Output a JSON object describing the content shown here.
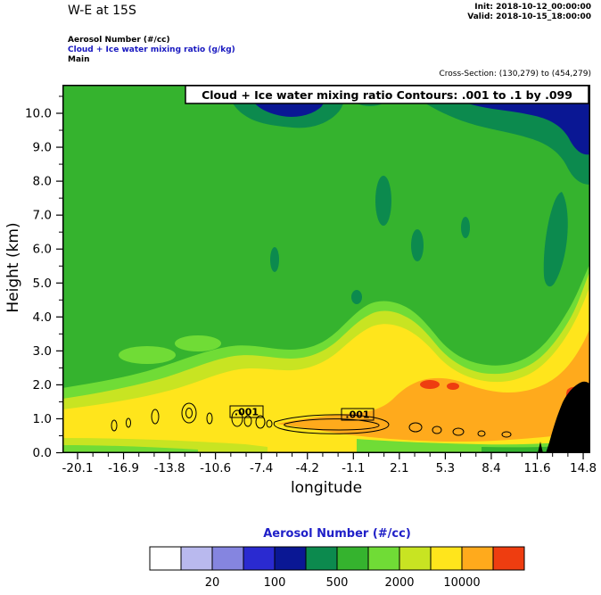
{
  "header": {
    "title": "W-E at 15S",
    "init_time": "Init: 2018-10-12_00:00:00",
    "valid_time": "Valid: 2018-10-15_18:00:00",
    "fields": {
      "fill": "Aerosol Number  (#/cc)",
      "contour": "Cloud + Ice water mixing ratio  (g/kg)",
      "model": "Main"
    },
    "cross_section": "Cross-Section: (130,279) to (454,279)"
  },
  "plot": {
    "banner": "Cloud + Ice water mixing ratio Contours: .001 to .1 by .099",
    "xlabel": "longitude",
    "ylabel": "Height (km)",
    "contour_labels": [
      ".001",
      ".001"
    ]
  },
  "axes": {
    "x": {
      "tick_labels": [
        "-20.1",
        "-16.9",
        "-13.8",
        "-10.6",
        "-7.4",
        "-4.2",
        "-1.1",
        "2.1",
        "5.3",
        "8.4",
        "11.6",
        "14.8"
      ]
    },
    "y": {
      "tick_labels": [
        "0.0",
        "1.0",
        "2.0",
        "3.0",
        "4.0",
        "5.0",
        "6.0",
        "7.0",
        "8.0",
        "9.0",
        "10.0"
      ]
    }
  },
  "colorbar": {
    "title": "Aerosol Number  (#/cc)",
    "labels": [
      "20",
      "100",
      "500",
      "2000",
      "10000"
    ],
    "label_boundaries": [
      2,
      4,
      6,
      8,
      10
    ],
    "title_color": "#2020c8"
  },
  "chart_data": {
    "type": "heatmap",
    "subtype": "filled-contour-vertical-cross-section",
    "title": "Cloud + Ice water mixing ratio Contours: .001 to .1 by .099",
    "fill_field": "Aerosol Number (#/cc)",
    "xlabel": "longitude",
    "ylabel": "Height (km)",
    "xlim": [
      -20.1,
      14.8
    ],
    "ylim": [
      0,
      10.8
    ],
    "x_ticks": [
      -20.1,
      -16.9,
      -13.8,
      -10.6,
      -7.4,
      -4.2,
      -1.1,
      2.1,
      5.3,
      8.4,
      11.6,
      14.8
    ],
    "y_ticks": [
      0,
      1,
      2,
      3,
      4,
      5,
      6,
      7,
      8,
      9,
      10
    ],
    "fill_levels": [
      10,
      20,
      50,
      100,
      200,
      500,
      1000,
      2000,
      5000,
      10000,
      20000
    ],
    "fill_colors": [
      "#ffffff",
      "#b9b9ee",
      "#8585e0",
      "#2a2ad0",
      "#0a1794",
      "#0c8a4e",
      "#35b32e",
      "#70dc36",
      "#c8e422",
      "#ffe51c",
      "#ffaa1c",
      "#ee3d10"
    ],
    "grid": {
      "lons": [
        -20.1,
        -16.9,
        -13.8,
        -10.6,
        -7.4,
        -4.2,
        -1.1,
        2.1,
        5.3,
        8.4,
        11.6,
        14.8
      ],
      "heights_km": [
        10,
        9,
        8,
        7,
        6,
        5,
        4,
        3,
        2,
        1,
        0.5
      ],
      "values_number_per_cc": [
        [
          700,
          700,
          300,
          150,
          400,
          300,
          700,
          150,
          150,
          150,
          150,
          300
        ],
        [
          700,
          700,
          700,
          700,
          700,
          700,
          700,
          150,
          150,
          150,
          300,
          700
        ],
        [
          700,
          700,
          700,
          700,
          700,
          700,
          700,
          300,
          300,
          300,
          700,
          300
        ],
        [
          700,
          700,
          700,
          700,
          700,
          700,
          700,
          700,
          300,
          700,
          700,
          700
        ],
        [
          700,
          700,
          700,
          700,
          700,
          300,
          700,
          300,
          700,
          700,
          700,
          1500
        ],
        [
          700,
          700,
          700,
          700,
          700,
          700,
          300,
          300,
          700,
          700,
          1500,
          5000
        ],
        [
          700,
          700,
          700,
          700,
          700,
          700,
          300,
          700,
          700,
          1500,
          3000,
          7000
        ],
        [
          1500,
          1500,
          700,
          1500,
          1500,
          700,
          700,
          3000,
          3000,
          3000,
          7000,
          7000
        ],
        [
          1500,
          1500,
          1500,
          1500,
          1500,
          1500,
          3000,
          7000,
          15000,
          7000,
          7000,
          15000
        ],
        [
          3000,
          3000,
          3000,
          7000,
          7000,
          7000,
          7000,
          15000,
          15000,
          15000,
          15000,
          15000
        ],
        [
          7000,
          5000,
          5000,
          7000,
          3000,
          1500,
          7000,
          7000,
          3000,
          3000,
          1500,
          null
        ]
      ]
    },
    "overlay_contours": {
      "field": "Cloud + Ice water mixing ratio (g/kg)",
      "levels": [
        0.001,
        0.1
      ],
      "label": ".001",
      "location": "closed loops near 0.5-1.2 km between lon -14 and 5"
    },
    "terrain": "black terrain wedge near lon 13 to 14.8 rising to about 2 km",
    "legend_position": "bottom"
  }
}
